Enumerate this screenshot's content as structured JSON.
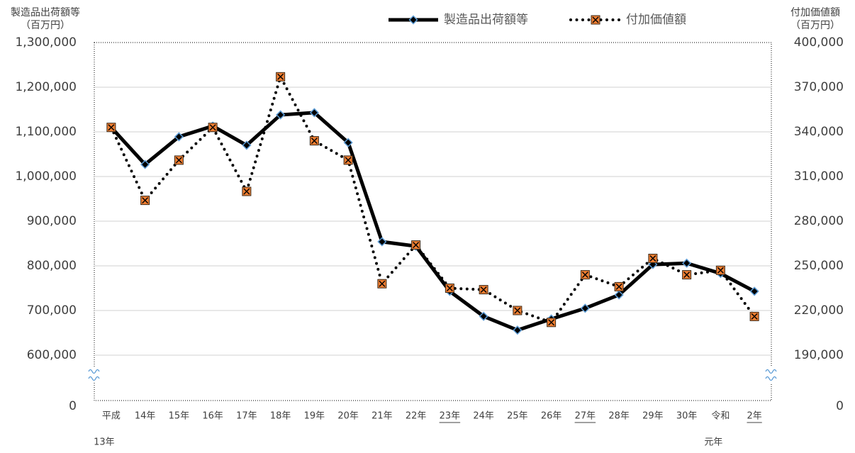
{
  "chart_data": {
    "type": "line",
    "y_title": [
      "製造品出荷額等",
      "（百万円）"
    ],
    "y2_title": [
      "付加価値額",
      "（百万円）"
    ],
    "categories": [
      [
        "平成",
        "13年"
      ],
      [
        "14年"
      ],
      [
        "15年"
      ],
      [
        "16年"
      ],
      [
        "17年"
      ],
      [
        "18年"
      ],
      [
        "19年"
      ],
      [
        "20年"
      ],
      [
        "21年"
      ],
      [
        "22年"
      ],
      [
        "23年"
      ],
      [
        "24年"
      ],
      [
        "25年"
      ],
      [
        "26年"
      ],
      [
        "27年"
      ],
      [
        "28年"
      ],
      [
        "29年"
      ],
      [
        "30年"
      ],
      [
        "令和",
        "元年"
      ],
      [
        "2年"
      ]
    ],
    "underline": [
      false,
      false,
      false,
      false,
      false,
      false,
      false,
      false,
      false,
      false,
      true,
      false,
      false,
      false,
      true,
      false,
      false,
      false,
      false,
      true
    ],
    "series": [
      {
        "name": "製造品出荷額等",
        "color": "#000000",
        "marker": "diamond",
        "marker_color": "#5b9bd5",
        "style": "solid",
        "values": [
          1110000,
          1027000,
          1089000,
          1113000,
          1070000,
          1138000,
          1143000,
          1076000,
          854000,
          844000,
          743000,
          687000,
          656000,
          681000,
          705000,
          735000,
          803000,
          806000,
          783000,
          743000
        ]
      },
      {
        "name": "付加価値額",
        "color": "#000000",
        "marker": "square",
        "marker_color": "#ed7d31",
        "style": "dotted",
        "axis": "y2",
        "values": [
          343000,
          294000,
          321000,
          343000,
          300000,
          377000,
          334000,
          321000,
          238000,
          264000,
          235000,
          234000,
          220000,
          212000,
          244000,
          236000,
          255000,
          244000,
          247000,
          216000
        ]
      }
    ],
    "ylim": [
      0,
      1300000
    ],
    "yticks": [
      0,
      {
        "value": 600000,
        "label": "600,000"
      },
      {
        "value": 700000,
        "label": "700,000"
      },
      {
        "value": 800000,
        "label": "800,000"
      },
      {
        "value": 900000,
        "label": "900,000"
      },
      {
        "value": 1000000,
        "label": "1,000,000"
      },
      {
        "value": 1100000,
        "label": "1,100,000"
      },
      {
        "value": 1200000,
        "label": "1,200,000"
      },
      {
        "value": 1300000,
        "label": "1,300,000"
      }
    ],
    "y2lim": [
      0,
      400000
    ],
    "y2ticks": [
      0,
      {
        "value": 190000,
        "label": "190,000"
      },
      {
        "value": 220000,
        "label": "220,000"
      },
      {
        "value": 250000,
        "label": "250,000"
      },
      {
        "value": 280000,
        "label": "280,000"
      },
      {
        "value": 310000,
        "label": "310,000"
      },
      {
        "value": 340000,
        "label": "340,000"
      },
      {
        "value": 370000,
        "label": "370,000"
      },
      {
        "value": 400000,
        "label": "400,000"
      }
    ],
    "axis_break": true,
    "grid": true,
    "legend": "top"
  }
}
